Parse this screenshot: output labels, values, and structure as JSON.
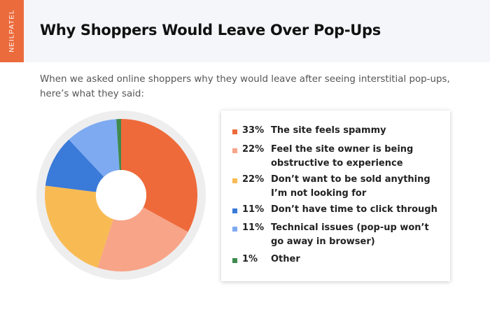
{
  "brand": {
    "name": "NEILPATEL"
  },
  "header": {
    "title": "Why Shoppers Would Leave Over Pop-Ups"
  },
  "intro": {
    "text": "When we asked online shoppers why they would leave after seeing interstitial pop-ups, here’s what they said:"
  },
  "colors": {
    "brand": "#ec6b3c",
    "header_bg": "#f5f6fa",
    "ring_bg": "#eeeeee"
  },
  "chart_data": {
    "type": "pie",
    "style": "donut",
    "legend_position": "right",
    "slices": [
      {
        "pct_label": "33%",
        "value": 33,
        "label": "The site feels spammy",
        "color": "#ee6a3a"
      },
      {
        "pct_label": "22%",
        "value": 22,
        "label": "Feel the site owner is being obstructive to experience",
        "color": "#f8a488"
      },
      {
        "pct_label": "22%",
        "value": 22,
        "label": "Don’t want to be sold anything I’m not looking for",
        "color": "#f8bb54"
      },
      {
        "pct_label": "11%",
        "value": 11,
        "label": "Don’t have time to click through",
        "color": "#3a7ad8"
      },
      {
        "pct_label": "11%",
        "value": 11,
        "label": "Technical issues (pop-up won’t go away in browser)",
        "color": "#7eaaf2"
      },
      {
        "pct_label": "1%",
        "value": 1,
        "label": "Other",
        "color": "#3f8a4d"
      }
    ]
  }
}
